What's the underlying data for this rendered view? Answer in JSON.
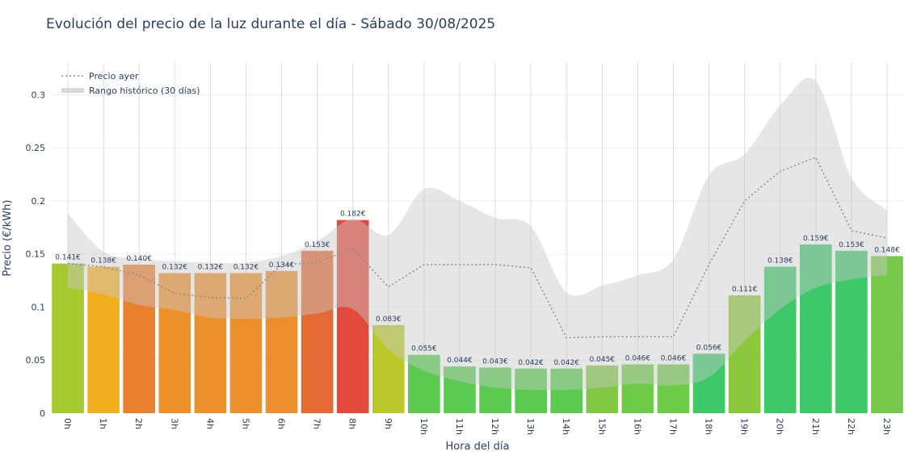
{
  "chart_data": {
    "type": "bar",
    "title": "Evolución del precio de la luz durante el día - Sábado 30/08/2025",
    "xlabel": "Hora del día",
    "ylabel": "Precio (€/kWh)",
    "ylim": [
      0,
      0.33
    ],
    "yticks": [
      0,
      0.05,
      0.1,
      0.15,
      0.2,
      0.25,
      0.3
    ],
    "ytick_labels": [
      "0",
      "0.05",
      "0.1",
      "0.15",
      "0.2",
      "0.25",
      "0.3"
    ],
    "grid": true,
    "legend_position": "top-left",
    "categories": [
      "0h",
      "1h",
      "2h",
      "3h",
      "4h",
      "5h",
      "6h",
      "7h",
      "8h",
      "9h",
      "10h",
      "11h",
      "12h",
      "13h",
      "14h",
      "15h",
      "16h",
      "17h",
      "18h",
      "19h",
      "20h",
      "21h",
      "22h",
      "23h"
    ],
    "values": [
      0.141,
      0.138,
      0.14,
      0.132,
      0.132,
      0.132,
      0.134,
      0.153,
      0.182,
      0.083,
      0.055,
      0.044,
      0.043,
      0.042,
      0.042,
      0.045,
      0.046,
      0.046,
      0.056,
      0.111,
      0.138,
      0.159,
      0.153,
      0.148
    ],
    "bar_labels": [
      "0.141€",
      "0.138€",
      "0.140€",
      "0.132€",
      "0.132€",
      "0.132€",
      "0.134€",
      "0.153€",
      "0.182€",
      "0.083€",
      "0.055€",
      "0.044€",
      "0.043€",
      "0.042€",
      "0.042€",
      "0.045€",
      "0.046€",
      "0.046€",
      "0.056€",
      "0.111€",
      "0.138€",
      "0.159€",
      "0.153€",
      "0.148€"
    ],
    "bar_colors": [
      "#a8c830",
      "#f0b01e",
      "#ea7f2d",
      "#ec902a",
      "#ec902a",
      "#ec902a",
      "#ea8f2c",
      "#e46a33",
      "#e34a3c",
      "#bac82c",
      "#5acb50",
      "#5acb50",
      "#5acb50",
      "#5acb50",
      "#5acb50",
      "#82c845",
      "#6ecb48",
      "#6ecb48",
      "#3ec86a",
      "#8dc83c",
      "#3ec86a",
      "#3ec86a",
      "#3ec86a",
      "#78c84b"
    ],
    "series": [
      {
        "name": "Precio ayer",
        "values": [
          0.141,
          0.138,
          0.13,
          0.113,
          0.109,
          0.108,
          0.14,
          0.142,
          0.155,
          0.119,
          0.14,
          0.14,
          0.14,
          0.137,
          0.071,
          0.072,
          0.072,
          0.072,
          0.14,
          0.2,
          0.228,
          0.241,
          0.172,
          0.165
        ]
      },
      {
        "name": "Rango histórico (30 días)",
        "min": [
          0.118,
          0.112,
          0.102,
          0.097,
          0.09,
          0.089,
          0.09,
          0.094,
          0.098,
          0.06,
          0.04,
          0.03,
          0.024,
          0.022,
          0.022,
          0.024,
          0.028,
          0.026,
          0.034,
          0.068,
          0.098,
          0.118,
          0.126,
          0.13
        ],
        "max": [
          0.188,
          0.152,
          0.146,
          0.143,
          0.142,
          0.142,
          0.148,
          0.162,
          0.183,
          0.168,
          0.211,
          0.2,
          0.184,
          0.176,
          0.114,
          0.12,
          0.13,
          0.145,
          0.224,
          0.244,
          0.29,
          0.313,
          0.222,
          0.191
        ]
      }
    ]
  }
}
